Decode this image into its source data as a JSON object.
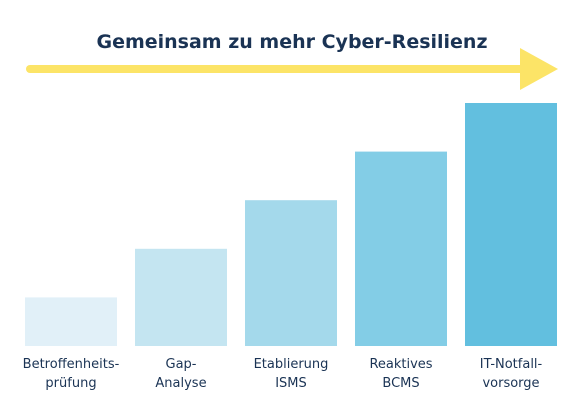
{
  "chart_data": {
    "type": "bar",
    "title": "Gemeinsam zu mehr Cyber-Resilienz",
    "categories": [
      [
        "Betroffenheits-",
        "prüfung"
      ],
      [
        "Gap-",
        "Analyse"
      ],
      [
        "Etablierung",
        "ISMS"
      ],
      [
        "Reaktives",
        "BCMS"
      ],
      [
        "IT-Notfall-",
        "vorsorge"
      ]
    ],
    "values": [
      1,
      2,
      3,
      4,
      5
    ],
    "ylim": [
      0,
      5
    ],
    "xlabel": "",
    "ylabel": "",
    "grid": false,
    "legend": "none",
    "bar_colors": [
      "#e1f0f8",
      "#c4e5f1",
      "#a4d9eb",
      "#83cde6",
      "#62bfdf"
    ],
    "arrow_color": "#fce467",
    "title_color": "#1a3354",
    "label_color": "#1a3354"
  }
}
